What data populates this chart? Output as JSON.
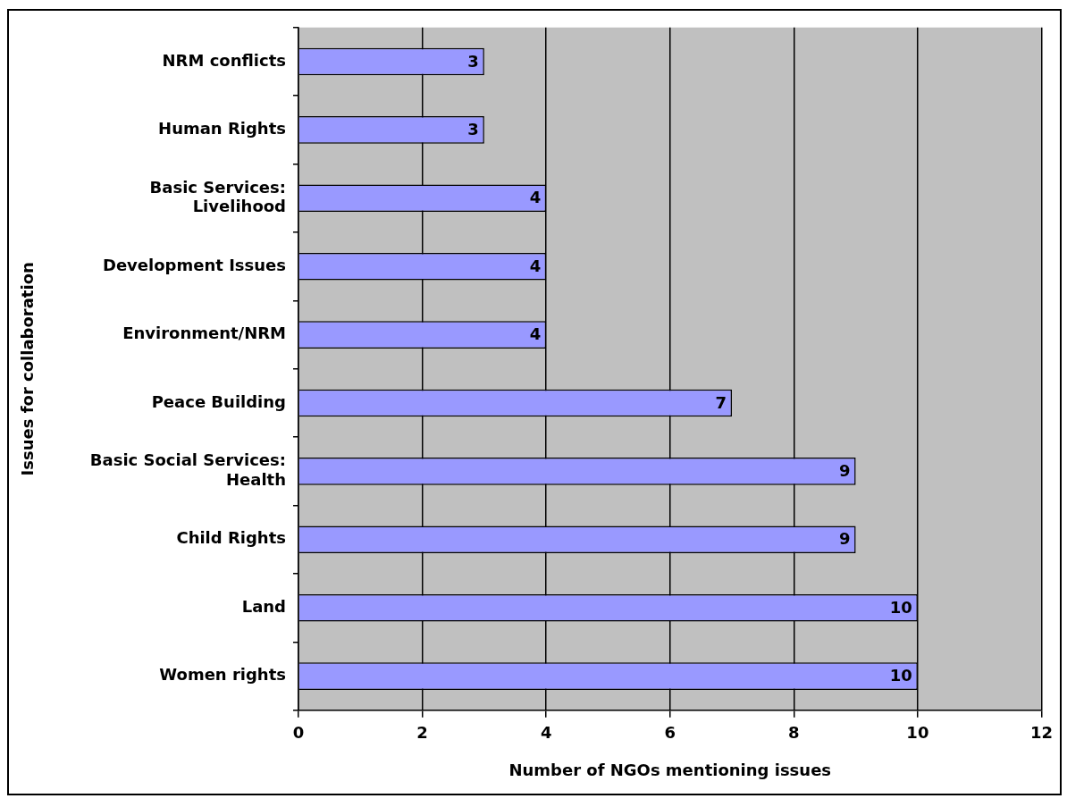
{
  "chart_data": {
    "type": "bar",
    "orientation": "horizontal",
    "xlabel": "Number of NGOs mentioning issues",
    "ylabel": "Issues for collaboration",
    "categories": [
      "NRM conflicts",
      "Human Rights",
      "Basic Services:\nLivelihood",
      "Development Issues",
      "Environment/NRM",
      "Peace Building",
      "Basic Social Services:\nHealth",
      "Child Rights",
      "Land",
      "Women rights"
    ],
    "values": [
      3,
      3,
      4,
      4,
      4,
      7,
      9,
      9,
      10,
      10
    ],
    "color": "#9999ff",
    "xlim": [
      0,
      12
    ],
    "xticks": [
      0,
      2,
      4,
      6,
      8,
      10,
      12
    ],
    "grid": "x",
    "legend": false,
    "data_labels": true
  }
}
